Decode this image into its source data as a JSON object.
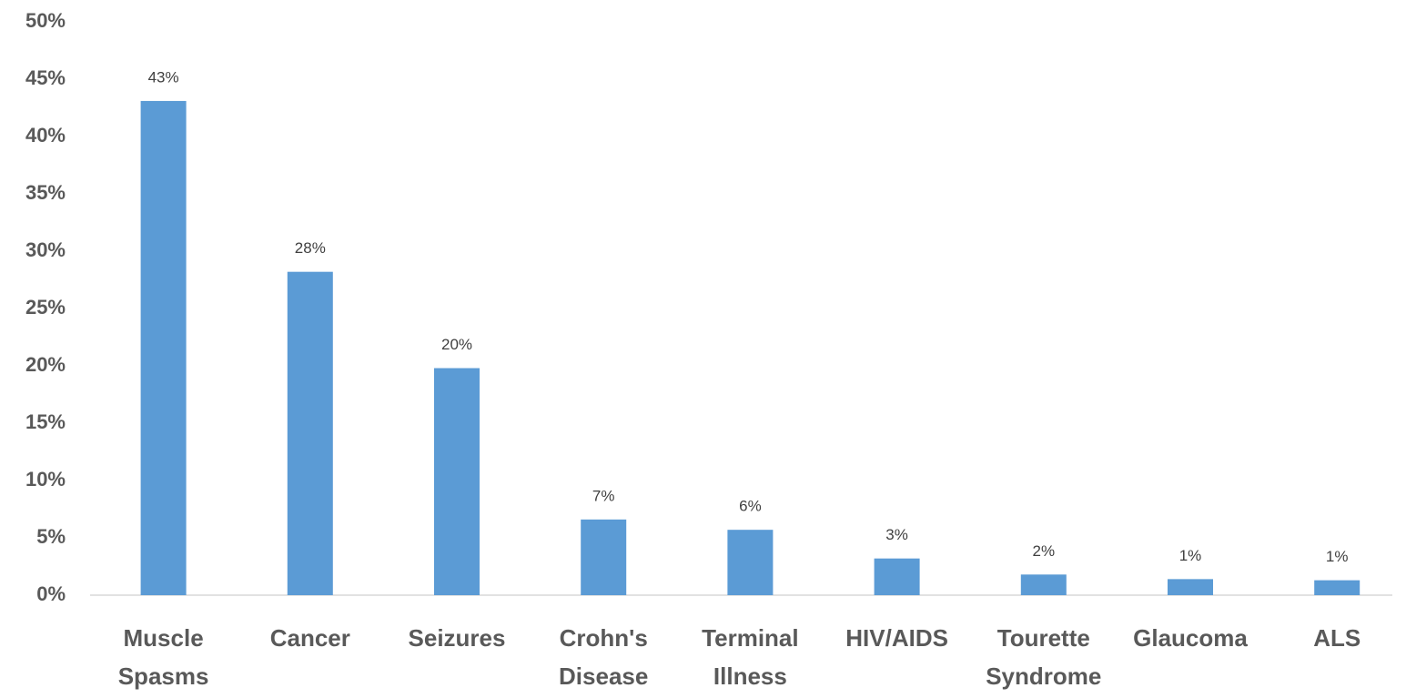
{
  "chart_data": {
    "type": "bar",
    "categories": [
      "Muscle Spasms",
      "Cancer",
      "Seizures",
      "Crohn's Disease",
      "Terminal Illness",
      "HIV/AIDS",
      "Tourette Syndrome",
      "Glaucoma",
      "ALS"
    ],
    "values": [
      43.1,
      28.2,
      19.8,
      6.6,
      5.7,
      3.2,
      1.8,
      1.4,
      1.3
    ],
    "value_labels": [
      "43%",
      "28%",
      "20%",
      "7%",
      "6%",
      "3%",
      "2%",
      "1%",
      "1%"
    ],
    "color": "#5b9bd5",
    "ylim": [
      0,
      50
    ],
    "yticks": [
      {
        "value": 0,
        "label": "0%"
      },
      {
        "value": 5,
        "label": "5%"
      },
      {
        "value": 10,
        "label": "10%"
      },
      {
        "value": 15,
        "label": "15%"
      },
      {
        "value": 20,
        "label": "20%"
      },
      {
        "value": 25,
        "label": "25%"
      },
      {
        "value": 30,
        "label": "30%"
      },
      {
        "value": 35,
        "label": "35%"
      },
      {
        "value": 40,
        "label": "40%"
      },
      {
        "value": 45,
        "label": "45%"
      },
      {
        "value": 50,
        "label": "50%"
      }
    ],
    "grid": false
  }
}
